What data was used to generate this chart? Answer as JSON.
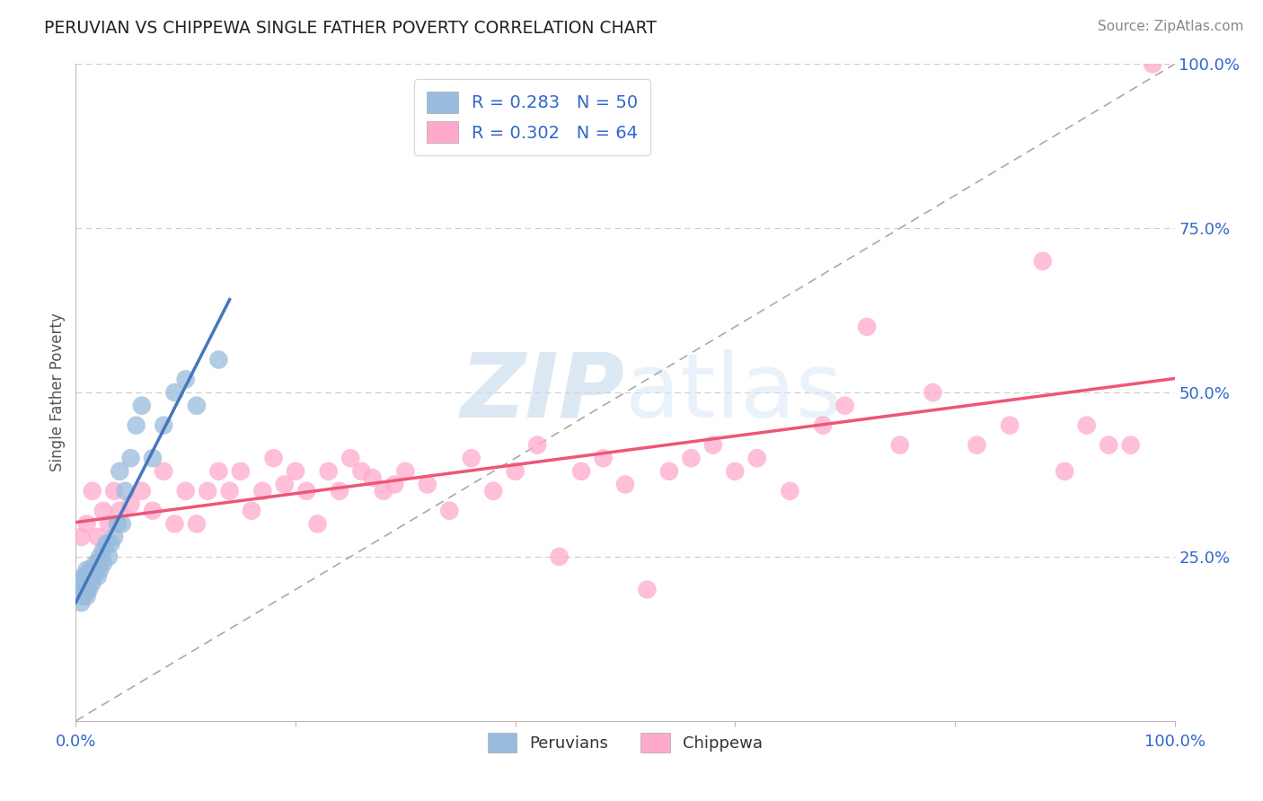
{
  "title": "PERUVIAN VS CHIPPEWA SINGLE FATHER POVERTY CORRELATION CHART",
  "source": "Source: ZipAtlas.com",
  "ylabel": "Single Father Poverty",
  "xlim": [
    0.0,
    1.0
  ],
  "ylim": [
    0.0,
    1.0
  ],
  "peruvians_color": "#99BBDD",
  "chippewa_color": "#FFAACC",
  "peruvians_R": 0.283,
  "peruvians_N": 50,
  "chippewa_R": 0.302,
  "chippewa_N": 64,
  "legend_label_peruvians": "Peruvians",
  "legend_label_chippewa": "Chippewa",
  "peruvians_x": [
    0.005,
    0.005,
    0.005,
    0.007,
    0.007,
    0.007,
    0.007,
    0.008,
    0.008,
    0.009,
    0.009,
    0.009,
    0.01,
    0.01,
    0.01,
    0.01,
    0.01,
    0.012,
    0.012,
    0.012,
    0.013,
    0.013,
    0.015,
    0.015,
    0.015,
    0.017,
    0.018,
    0.02,
    0.02,
    0.022,
    0.022,
    0.025,
    0.025,
    0.028,
    0.03,
    0.032,
    0.035,
    0.038,
    0.04,
    0.042,
    0.045,
    0.05,
    0.055,
    0.06,
    0.07,
    0.08,
    0.09,
    0.1,
    0.11,
    0.13
  ],
  "peruvians_y": [
    0.18,
    0.2,
    0.21,
    0.19,
    0.2,
    0.21,
    0.22,
    0.2,
    0.21,
    0.2,
    0.21,
    0.22,
    0.19,
    0.2,
    0.21,
    0.22,
    0.23,
    0.2,
    0.21,
    0.22,
    0.22,
    0.23,
    0.21,
    0.22,
    0.23,
    0.23,
    0.24,
    0.22,
    0.24,
    0.23,
    0.25,
    0.24,
    0.26,
    0.27,
    0.25,
    0.27,
    0.28,
    0.3,
    0.38,
    0.3,
    0.35,
    0.4,
    0.45,
    0.48,
    0.4,
    0.45,
    0.5,
    0.52,
    0.48,
    0.55
  ],
  "chippewa_x": [
    0.005,
    0.01,
    0.015,
    0.02,
    0.025,
    0.03,
    0.035,
    0.04,
    0.05,
    0.06,
    0.07,
    0.08,
    0.09,
    0.1,
    0.11,
    0.12,
    0.13,
    0.14,
    0.15,
    0.16,
    0.17,
    0.18,
    0.19,
    0.2,
    0.21,
    0.22,
    0.23,
    0.24,
    0.25,
    0.26,
    0.27,
    0.28,
    0.29,
    0.3,
    0.32,
    0.34,
    0.36,
    0.38,
    0.4,
    0.42,
    0.44,
    0.46,
    0.48,
    0.5,
    0.52,
    0.54,
    0.56,
    0.58,
    0.6,
    0.62,
    0.65,
    0.68,
    0.7,
    0.72,
    0.75,
    0.78,
    0.82,
    0.85,
    0.88,
    0.9,
    0.92,
    0.94,
    0.96,
    0.98
  ],
  "chippewa_y": [
    0.28,
    0.3,
    0.35,
    0.28,
    0.32,
    0.3,
    0.35,
    0.32,
    0.33,
    0.35,
    0.32,
    0.38,
    0.3,
    0.35,
    0.3,
    0.35,
    0.38,
    0.35,
    0.38,
    0.32,
    0.35,
    0.4,
    0.36,
    0.38,
    0.35,
    0.3,
    0.38,
    0.35,
    0.4,
    0.38,
    0.37,
    0.35,
    0.36,
    0.38,
    0.36,
    0.32,
    0.4,
    0.35,
    0.38,
    0.42,
    0.25,
    0.38,
    0.4,
    0.36,
    0.2,
    0.38,
    0.4,
    0.42,
    0.38,
    0.4,
    0.35,
    0.45,
    0.48,
    0.6,
    0.42,
    0.5,
    0.42,
    0.45,
    0.7,
    0.38,
    0.45,
    0.42,
    0.42,
    1.0
  ],
  "watermark_zip": "ZIP",
  "watermark_atlas": "atlas",
  "background_color": "#ffffff",
  "grid_color": "#cccccc",
  "peruvians_line_color": "#4477BB",
  "chippewa_line_color": "#EE5577",
  "diagonal_color": "#aaaaaa",
  "tick_color": "#3366CC",
  "label_color": "#555555"
}
